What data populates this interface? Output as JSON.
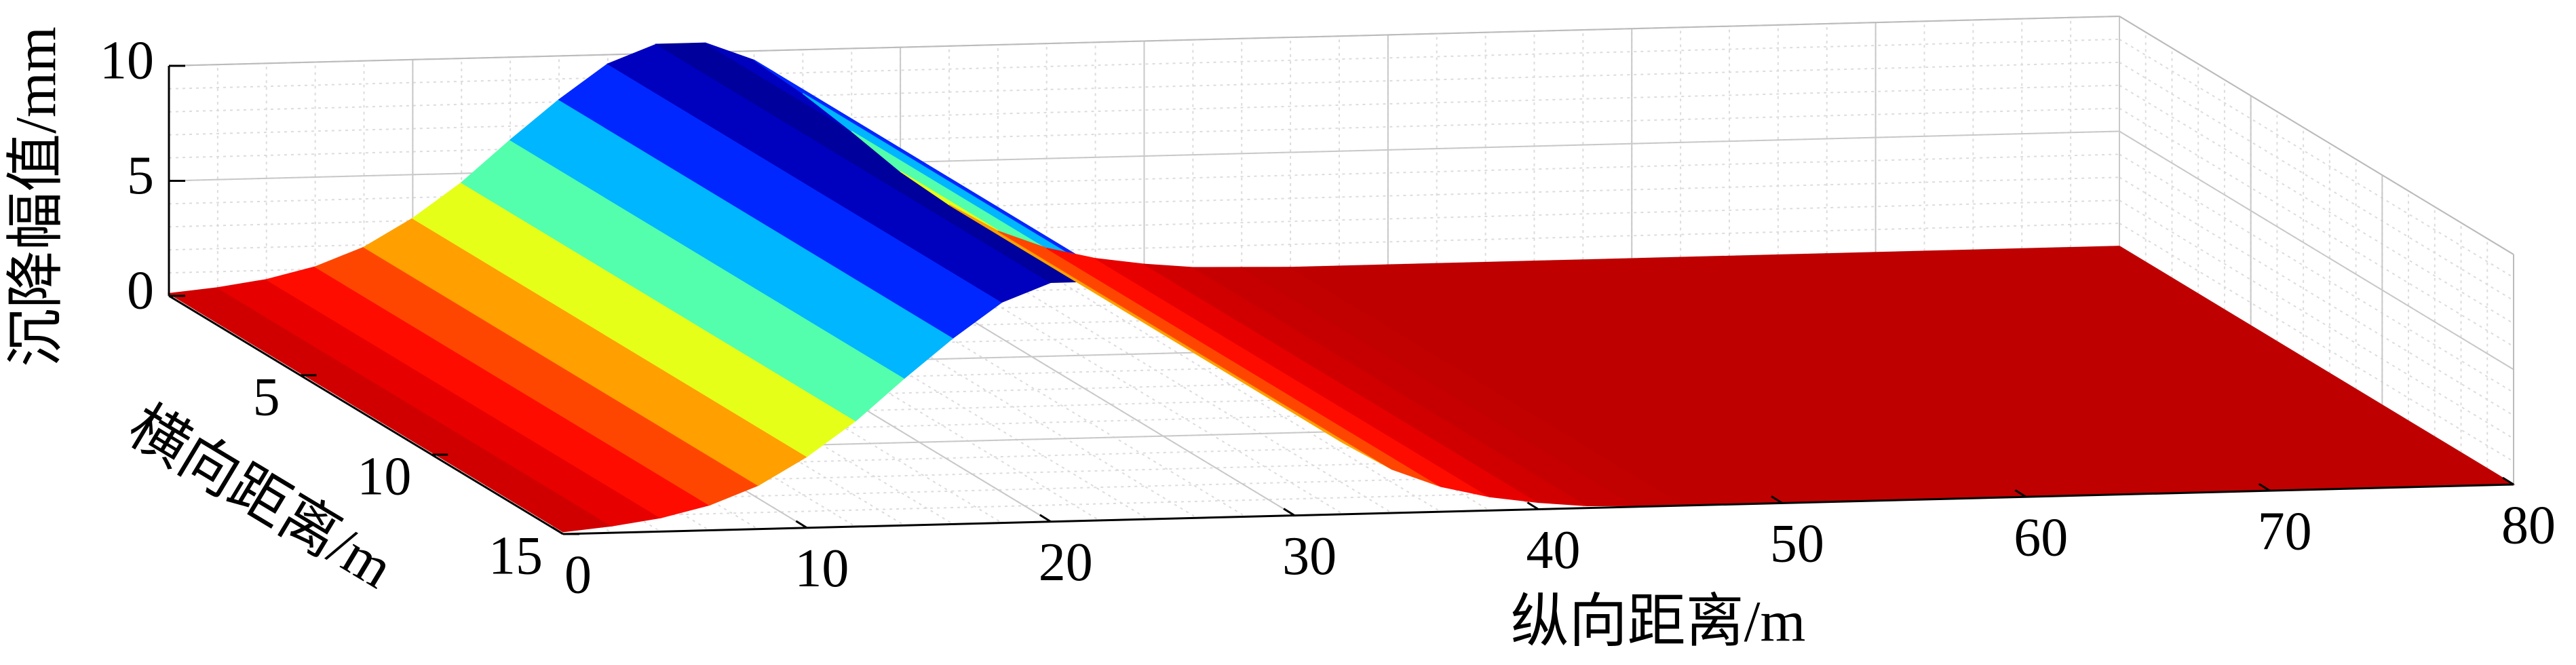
{
  "chart_data": {
    "type": "surface",
    "x_label": "纵向距离/m",
    "y_label": "横向距离/m",
    "z_label": "沉降幅值/mm",
    "x": [
      0,
      2,
      4,
      6,
      8,
      10,
      12,
      14,
      16,
      18,
      20,
      22,
      24,
      26,
      28,
      30,
      32,
      34,
      36,
      38,
      40,
      42,
      44,
      46,
      48,
      50,
      52,
      54,
      56,
      58,
      60,
      62,
      64,
      66,
      68,
      70,
      72,
      74,
      76,
      78,
      80
    ],
    "z": [
      0.1,
      0.3,
      0.6,
      1.1,
      1.9,
      3.1,
      4.6,
      6.4,
      8.1,
      9.6,
      10.4,
      10.4,
      9.6,
      8.1,
      6.4,
      4.6,
      3.1,
      1.9,
      1.1,
      0.6,
      0.3,
      0.1,
      0.05,
      0,
      0,
      0,
      0,
      0,
      0,
      0,
      0,
      0,
      0,
      0,
      0,
      0,
      0,
      0,
      0,
      0,
      0
    ],
    "xlim": [
      0,
      80
    ],
    "xticks": [
      0,
      10,
      20,
      30,
      40,
      50,
      60,
      70,
      80
    ],
    "ylim": [
      0,
      15
    ],
    "yticks": [
      5,
      10,
      15
    ],
    "zlim": [
      0,
      10
    ],
    "zticks": [
      0,
      5,
      10
    ],
    "colormap": "jet",
    "colormap_reversed": true,
    "grid": true
  }
}
